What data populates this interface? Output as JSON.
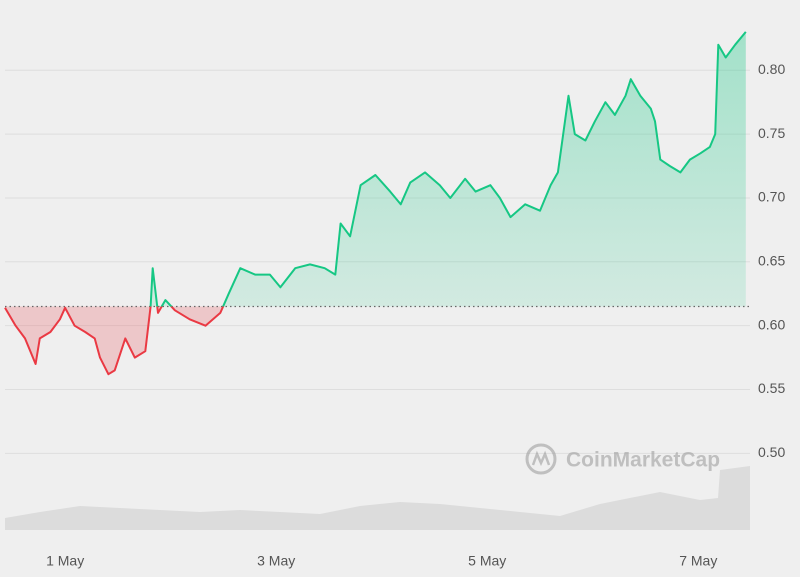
{
  "chart_data": {
    "type": "line",
    "watermark": "CoinMarketCap",
    "x": [
      0.43,
      0.53,
      0.62,
      0.72,
      0.76,
      0.86,
      0.95,
      1.0,
      1.09,
      1.19,
      1.28,
      1.33,
      1.41,
      1.47,
      1.57,
      1.66,
      1.76,
      1.81,
      1.83,
      1.88,
      1.95,
      2.04,
      2.18,
      2.33,
      2.47,
      2.55,
      2.66,
      2.8,
      2.94,
      3.04,
      3.18,
      3.32,
      3.46,
      3.56,
      3.61,
      3.7,
      3.8,
      3.94,
      4.08,
      4.18,
      4.27,
      4.41,
      4.55,
      4.65,
      4.79,
      4.89,
      5.03,
      5.12,
      5.22,
      5.36,
      5.5,
      5.6,
      5.67,
      5.77,
      5.83,
      5.93,
      6.02,
      6.12,
      6.21,
      6.31,
      6.36,
      6.45,
      6.55,
      6.59,
      6.64,
      6.73,
      6.83,
      6.92,
      7.02,
      7.11,
      7.16,
      7.19,
      7.26,
      7.35,
      7.45
    ],
    "values": [
      0.614,
      0.6,
      0.59,
      0.57,
      0.59,
      0.595,
      0.605,
      0.614,
      0.6,
      0.595,
      0.59,
      0.575,
      0.562,
      0.565,
      0.59,
      0.575,
      0.58,
      0.615,
      0.645,
      0.61,
      0.62,
      0.612,
      0.605,
      0.6,
      0.61,
      0.625,
      0.645,
      0.64,
      0.64,
      0.63,
      0.645,
      0.648,
      0.645,
      0.64,
      0.68,
      0.67,
      0.71,
      0.718,
      0.705,
      0.695,
      0.712,
      0.72,
      0.71,
      0.7,
      0.715,
      0.705,
      0.71,
      0.7,
      0.685,
      0.695,
      0.69,
      0.71,
      0.72,
      0.78,
      0.75,
      0.745,
      0.76,
      0.775,
      0.765,
      0.78,
      0.793,
      0.78,
      0.77,
      0.76,
      0.73,
      0.725,
      0.72,
      0.73,
      0.735,
      0.74,
      0.75,
      0.82,
      0.81,
      0.82,
      0.83
    ],
    "baseline": 0.615,
    "up_color": "#16c784",
    "down_color": "#ea3943",
    "xlim": [
      0.43,
      7.49
    ],
    "ylim": [
      0.44,
      0.855
    ],
    "xticks": [
      {
        "value": 1,
        "label": "1 May"
      },
      {
        "value": 3,
        "label": "3 May"
      },
      {
        "value": 5,
        "label": "5 May"
      },
      {
        "value": 7,
        "label": "7 May"
      }
    ],
    "yticks": [
      {
        "value": 0.5,
        "label": "0.50"
      },
      {
        "value": 0.55,
        "label": "0.55"
      },
      {
        "value": 0.6,
        "label": "0.60"
      },
      {
        "value": 0.65,
        "label": "0.65"
      },
      {
        "value": 0.7,
        "label": "0.70"
      },
      {
        "value": 0.75,
        "label": "0.75"
      },
      {
        "value": 0.8,
        "label": "0.80"
      }
    ],
    "grid": true
  }
}
